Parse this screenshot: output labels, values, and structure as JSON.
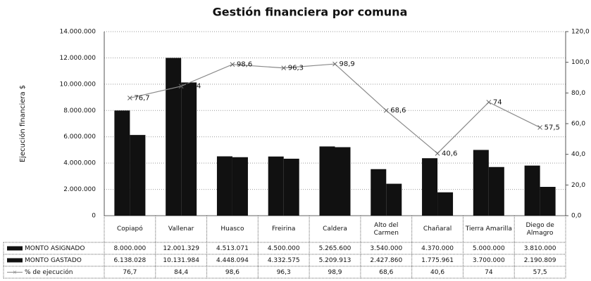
{
  "chart_data": {
    "type": "bar_line_table",
    "title": "Gestión financiera por comuna",
    "y_label": "Ejecución financiera $",
    "categories": [
      "Copiapó",
      "Vallenar",
      "Huasco",
      "Freirina",
      "Caldera",
      "Alto del Carmen",
      "Chañaral",
      "Tierra Amarilla",
      "Diego de Almagro"
    ],
    "series": [
      {
        "name": "MONTO ASIGNADO",
        "color": "#111111",
        "type": "bar",
        "values": [
          8000000,
          12001329,
          4513071,
          4500000,
          5265600,
          3540000,
          4370000,
          5000000,
          3810000
        ],
        "value_labels": [
          "8.000.000",
          "12.001.329",
          "4.513.071",
          "4.500.000",
          "5.265.600",
          "3.540.000",
          "4.370.000",
          "5.000.000",
          "3.810.000"
        ]
      },
      {
        "name": "MONTO GASTADO",
        "color": "#111111",
        "type": "bar",
        "values": [
          6138028,
          10131984,
          4448094,
          4332575,
          5209913,
          2427860,
          1775961,
          3700000,
          2190809
        ],
        "value_labels": [
          "6.138.028",
          "10.131.984",
          "4.448.094",
          "4.332.575",
          "5.209.913",
          "2.427.860",
          "1.775.961",
          "3.700.000",
          "2.190.809"
        ]
      },
      {
        "name": "% de ejecución",
        "color": "#8a8a8a",
        "type": "line",
        "axis": "y2",
        "values": [
          76.7,
          84.4,
          98.6,
          96.3,
          98.9,
          68.6,
          40.6,
          74,
          57.5
        ],
        "value_labels": [
          "76,7",
          "84,4",
          "98,6",
          "96,3",
          "98,9",
          "68,6",
          "40,6",
          "74",
          "57,5"
        ]
      }
    ],
    "ylim": [
      0,
      14000000
    ],
    "yticks": [
      0,
      {
        "value": 2000000,
        "label": "2.000.000"
      },
      {
        "value": 4000000,
        "label": "4.000.000"
      },
      {
        "value": 6000000,
        "label": "6.000.000"
      },
      {
        "value": 8000000,
        "label": "8.000.000"
      },
      {
        "value": 10000000,
        "label": "10.000.000"
      },
      {
        "value": 12000000,
        "label": "12.000.000"
      },
      {
        "value": 14000000,
        "label": "14.000.000"
      }
    ],
    "y2lim": [
      0,
      120
    ],
    "y2ticks": [
      {
        "value": 0,
        "label": "0,0"
      },
      {
        "value": 20,
        "label": "20,0"
      },
      {
        "value": 40,
        "label": "40,0"
      },
      {
        "value": 60,
        "label": "60,0"
      },
      {
        "value": 80,
        "label": "80,0"
      },
      {
        "value": 100,
        "label": "100,0"
      },
      {
        "value": 120,
        "label": "120,0"
      }
    ],
    "grid": true
  }
}
